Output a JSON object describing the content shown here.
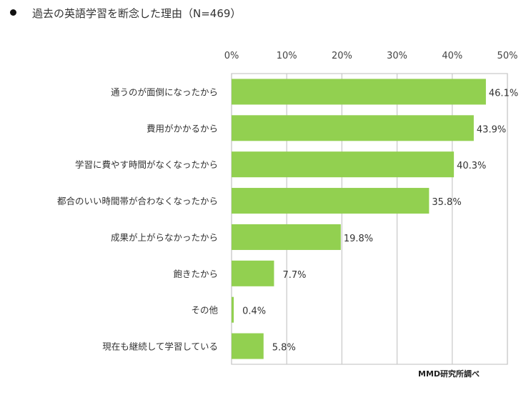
{
  "chart_data": {
    "type": "bar",
    "orientation": "horizontal",
    "title": "過去の英語学習を断念した理由（N=469）",
    "categories": [
      "通うのが面倒になったから",
      "費用がかかるから",
      "学習に費やす時間がなくなったから",
      "都合のいい時間帯が合わなくなったから",
      "成果が上がらなかったから",
      "飽きたから",
      "その他",
      "現在も継続して学習している"
    ],
    "values": [
      46.1,
      43.9,
      40.3,
      35.8,
      19.8,
      7.7,
      0.4,
      5.8
    ],
    "value_labels": [
      "46.1%",
      "43.9%",
      "40.3%",
      "35.8%",
      "19.8%",
      "7.7%",
      "0.4%",
      "5.8%"
    ],
    "xlim": [
      0,
      50
    ],
    "x_ticks": [
      "0%",
      "10%",
      "20%",
      "30%",
      "40%",
      "50%"
    ],
    "x_axis_position": "top",
    "grid": true,
    "bar_color": "#92d050",
    "source": "MMD研究所調べ"
  }
}
